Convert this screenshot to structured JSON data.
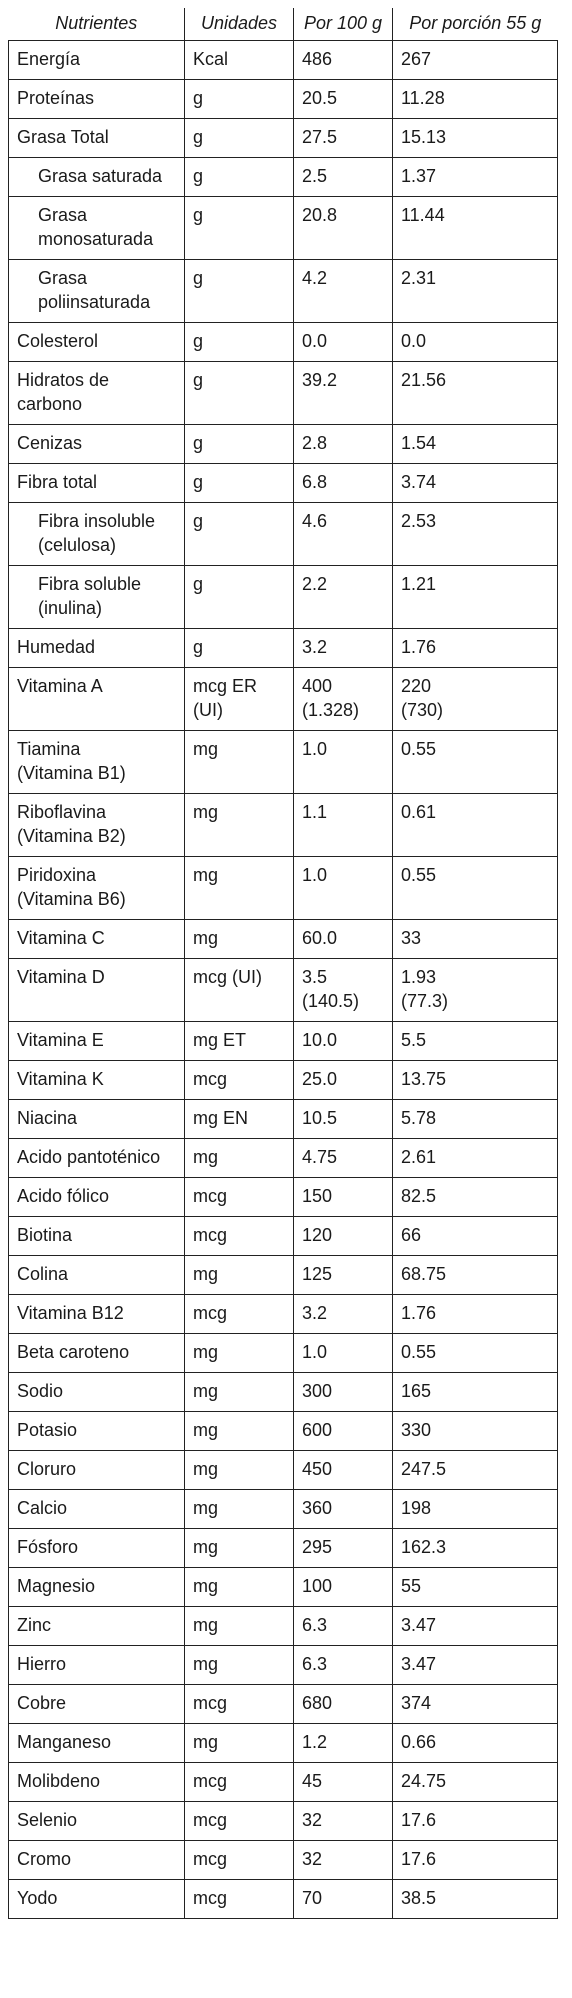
{
  "headers": [
    "Nutrientes",
    "Unidades",
    "Por 100 g",
    "Por porción 55 g"
  ],
  "rows": [
    {
      "nutrient": "Energía",
      "unit": "Kcal",
      "per100": "486",
      "perPortion": "267",
      "indent": false
    },
    {
      "nutrient": "Proteínas",
      "unit": "g",
      "per100": "20.5",
      "perPortion": "11.28",
      "indent": false
    },
    {
      "nutrient": "Grasa Total",
      "unit": "g",
      "per100": "27.5",
      "perPortion": "15.13",
      "indent": false
    },
    {
      "nutrient": "Grasa saturada",
      "unit": "g",
      "per100": "2.5",
      "perPortion": "1.37",
      "indent": true
    },
    {
      "nutrient": "Grasa\nmonosaturada",
      "unit": "g",
      "per100": "20.8",
      "perPortion": "11.44",
      "indent": true
    },
    {
      "nutrient": "Grasa\npoliinsaturada",
      "unit": "g",
      "per100": "4.2",
      "perPortion": "2.31",
      "indent": true
    },
    {
      "nutrient": "Colesterol",
      "unit": "g",
      "per100": "0.0",
      "perPortion": "0.0",
      "indent": false
    },
    {
      "nutrient": "Hidratos de\ncarbono",
      "unit": "g",
      "per100": "39.2",
      "perPortion": "21.56",
      "indent": false
    },
    {
      "nutrient": "Cenizas",
      "unit": "g",
      "per100": "2.8",
      "perPortion": "1.54",
      "indent": false
    },
    {
      "nutrient": "Fibra total",
      "unit": "g",
      "per100": "6.8",
      "perPortion": "3.74",
      "indent": false
    },
    {
      "nutrient": "Fibra insoluble\n(celulosa)",
      "unit": "g",
      "per100": "4.6",
      "perPortion": "2.53",
      "indent": true
    },
    {
      "nutrient": "Fibra soluble\n(inulina)",
      "unit": "g",
      "per100": "2.2",
      "perPortion": "1.21",
      "indent": true
    },
    {
      "nutrient": "Humedad",
      "unit": "g",
      "per100": "3.2",
      "perPortion": "1.76",
      "indent": false
    },
    {
      "nutrient": "Vitamina A",
      "unit": "mcg ER\n(UI)",
      "per100": "400\n(1.328)",
      "perPortion": "220\n(730)",
      "indent": false
    },
    {
      "nutrient": "Tiamina\n(Vitamina B1)",
      "unit": "mg",
      "per100": "1.0",
      "perPortion": "0.55",
      "indent": false
    },
    {
      "nutrient": "Riboflavina\n(Vitamina B2)",
      "unit": "mg",
      "per100": "1.1",
      "perPortion": "0.61",
      "indent": false
    },
    {
      "nutrient": "Piridoxina\n(Vitamina B6)",
      "unit": "mg",
      "per100": "1.0",
      "perPortion": "0.55",
      "indent": false
    },
    {
      "nutrient": "Vitamina C",
      "unit": "mg",
      "per100": "60.0",
      "perPortion": "33",
      "indent": false
    },
    {
      "nutrient": "Vitamina D",
      "unit": "mcg (UI)",
      "per100": "3.5\n(140.5)",
      "perPortion": "1.93\n(77.3)",
      "indent": false
    },
    {
      "nutrient": "Vitamina E",
      "unit": "mg ET",
      "per100": "10.0",
      "perPortion": "5.5",
      "indent": false
    },
    {
      "nutrient": "Vitamina K",
      "unit": "mcg",
      "per100": "25.0",
      "perPortion": "13.75",
      "indent": false
    },
    {
      "nutrient": "Niacina",
      "unit": "mg EN",
      "per100": "10.5",
      "perPortion": "5.78",
      "indent": false
    },
    {
      "nutrient": "Acido pantoténico",
      "unit": "mg",
      "per100": "4.75",
      "perPortion": "2.61",
      "indent": false
    },
    {
      "nutrient": "Acido fólico",
      "unit": "mcg",
      "per100": "150",
      "perPortion": "82.5",
      "indent": false
    },
    {
      "nutrient": "Biotina",
      "unit": "mcg",
      "per100": "120",
      "perPortion": "66",
      "indent": false
    },
    {
      "nutrient": "Colina",
      "unit": "mg",
      "per100": "125",
      "perPortion": "68.75",
      "indent": false
    },
    {
      "nutrient": "Vitamina B12",
      "unit": "mcg",
      "per100": "3.2",
      "perPortion": "1.76",
      "indent": false
    },
    {
      "nutrient": "Beta caroteno",
      "unit": "mg",
      "per100": "1.0",
      "perPortion": "0.55",
      "indent": false
    },
    {
      "nutrient": "Sodio",
      "unit": "mg",
      "per100": "300",
      "perPortion": "165",
      "indent": false
    },
    {
      "nutrient": "Potasio",
      "unit": "mg",
      "per100": "600",
      "perPortion": "330",
      "indent": false
    },
    {
      "nutrient": "Cloruro",
      "unit": "mg",
      "per100": "450",
      "perPortion": "247.5",
      "indent": false
    },
    {
      "nutrient": "Calcio",
      "unit": "mg",
      "per100": "360",
      "perPortion": "198",
      "indent": false
    },
    {
      "nutrient": "Fósforo",
      "unit": "mg",
      "per100": "295",
      "perPortion": "162.3",
      "indent": false
    },
    {
      "nutrient": "Magnesio",
      "unit": "mg",
      "per100": "100",
      "perPortion": "55",
      "indent": false
    },
    {
      "nutrient": "Zinc",
      "unit": "mg",
      "per100": "6.3",
      "perPortion": "3.47",
      "indent": false
    },
    {
      "nutrient": "Hierro",
      "unit": "mg",
      "per100": "6.3",
      "perPortion": "3.47",
      "indent": false
    },
    {
      "nutrient": "Cobre",
      "unit": "mcg",
      "per100": "680",
      "perPortion": "374",
      "indent": false
    },
    {
      "nutrient": "Manganeso",
      "unit": "mg",
      "per100": "1.2",
      "perPortion": "0.66",
      "indent": false
    },
    {
      "nutrient": "Molibdeno",
      "unit": "mcg",
      "per100": "45",
      "perPortion": "24.75",
      "indent": false
    },
    {
      "nutrient": "Selenio",
      "unit": "mcg",
      "per100": "32",
      "perPortion": "17.6",
      "indent": false
    },
    {
      "nutrient": "Cromo",
      "unit": "mcg",
      "per100": "32",
      "perPortion": "17.6",
      "indent": false
    },
    {
      "nutrient": "Yodo",
      "unit": "mcg",
      "per100": "70",
      "perPortion": "38.5",
      "indent": false
    }
  ]
}
